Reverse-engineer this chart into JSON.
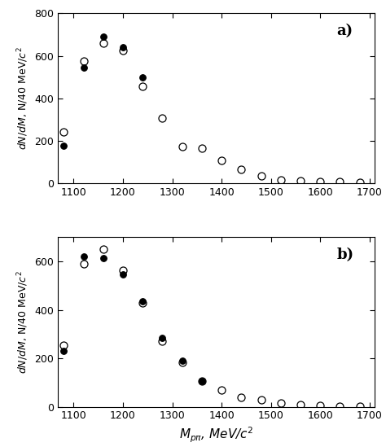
{
  "panel_a": {
    "open_x": [
      1080,
      1120,
      1160,
      1200,
      1240,
      1280,
      1320,
      1360,
      1400,
      1440,
      1480,
      1520,
      1560,
      1600,
      1640,
      1680
    ],
    "open_y": [
      240,
      575,
      660,
      625,
      455,
      305,
      170,
      165,
      105,
      65,
      35,
      15,
      10,
      5,
      5,
      3
    ],
    "filled_x": [
      1080,
      1120,
      1160,
      1200,
      1240
    ],
    "filled_y": [
      175,
      545,
      690,
      640,
      500
    ]
  },
  "panel_b": {
    "open_x": [
      1080,
      1120,
      1160,
      1200,
      1240,
      1280,
      1320,
      1360,
      1400,
      1440,
      1480,
      1520,
      1560,
      1600,
      1640,
      1680
    ],
    "open_y": [
      255,
      590,
      650,
      565,
      430,
      270,
      185,
      105,
      70,
      40,
      30,
      15,
      10,
      5,
      3,
      2
    ],
    "filled_x": [
      1080,
      1120,
      1160,
      1200,
      1240,
      1280,
      1320,
      1360
    ],
    "filled_y": [
      230,
      620,
      615,
      545,
      435,
      285,
      190,
      105
    ]
  },
  "xlim": [
    1068,
    1710
  ],
  "ylim_a": [
    0,
    800
  ],
  "ylim_b": [
    0,
    700
  ],
  "xticks": [
    1100,
    1200,
    1300,
    1400,
    1500,
    1600,
    1700
  ],
  "yticks_a": [
    0,
    200,
    400,
    600,
    800
  ],
  "yticks_b": [
    0,
    200,
    400,
    600
  ],
  "label_a": "a)",
  "label_b": "b)",
  "markersize_open": 6.5,
  "markersize_filled": 5.5,
  "tick_fontsize": 9,
  "ylabel_fontsize": 9,
  "xlabel_fontsize": 11,
  "label_fontsize": 13
}
